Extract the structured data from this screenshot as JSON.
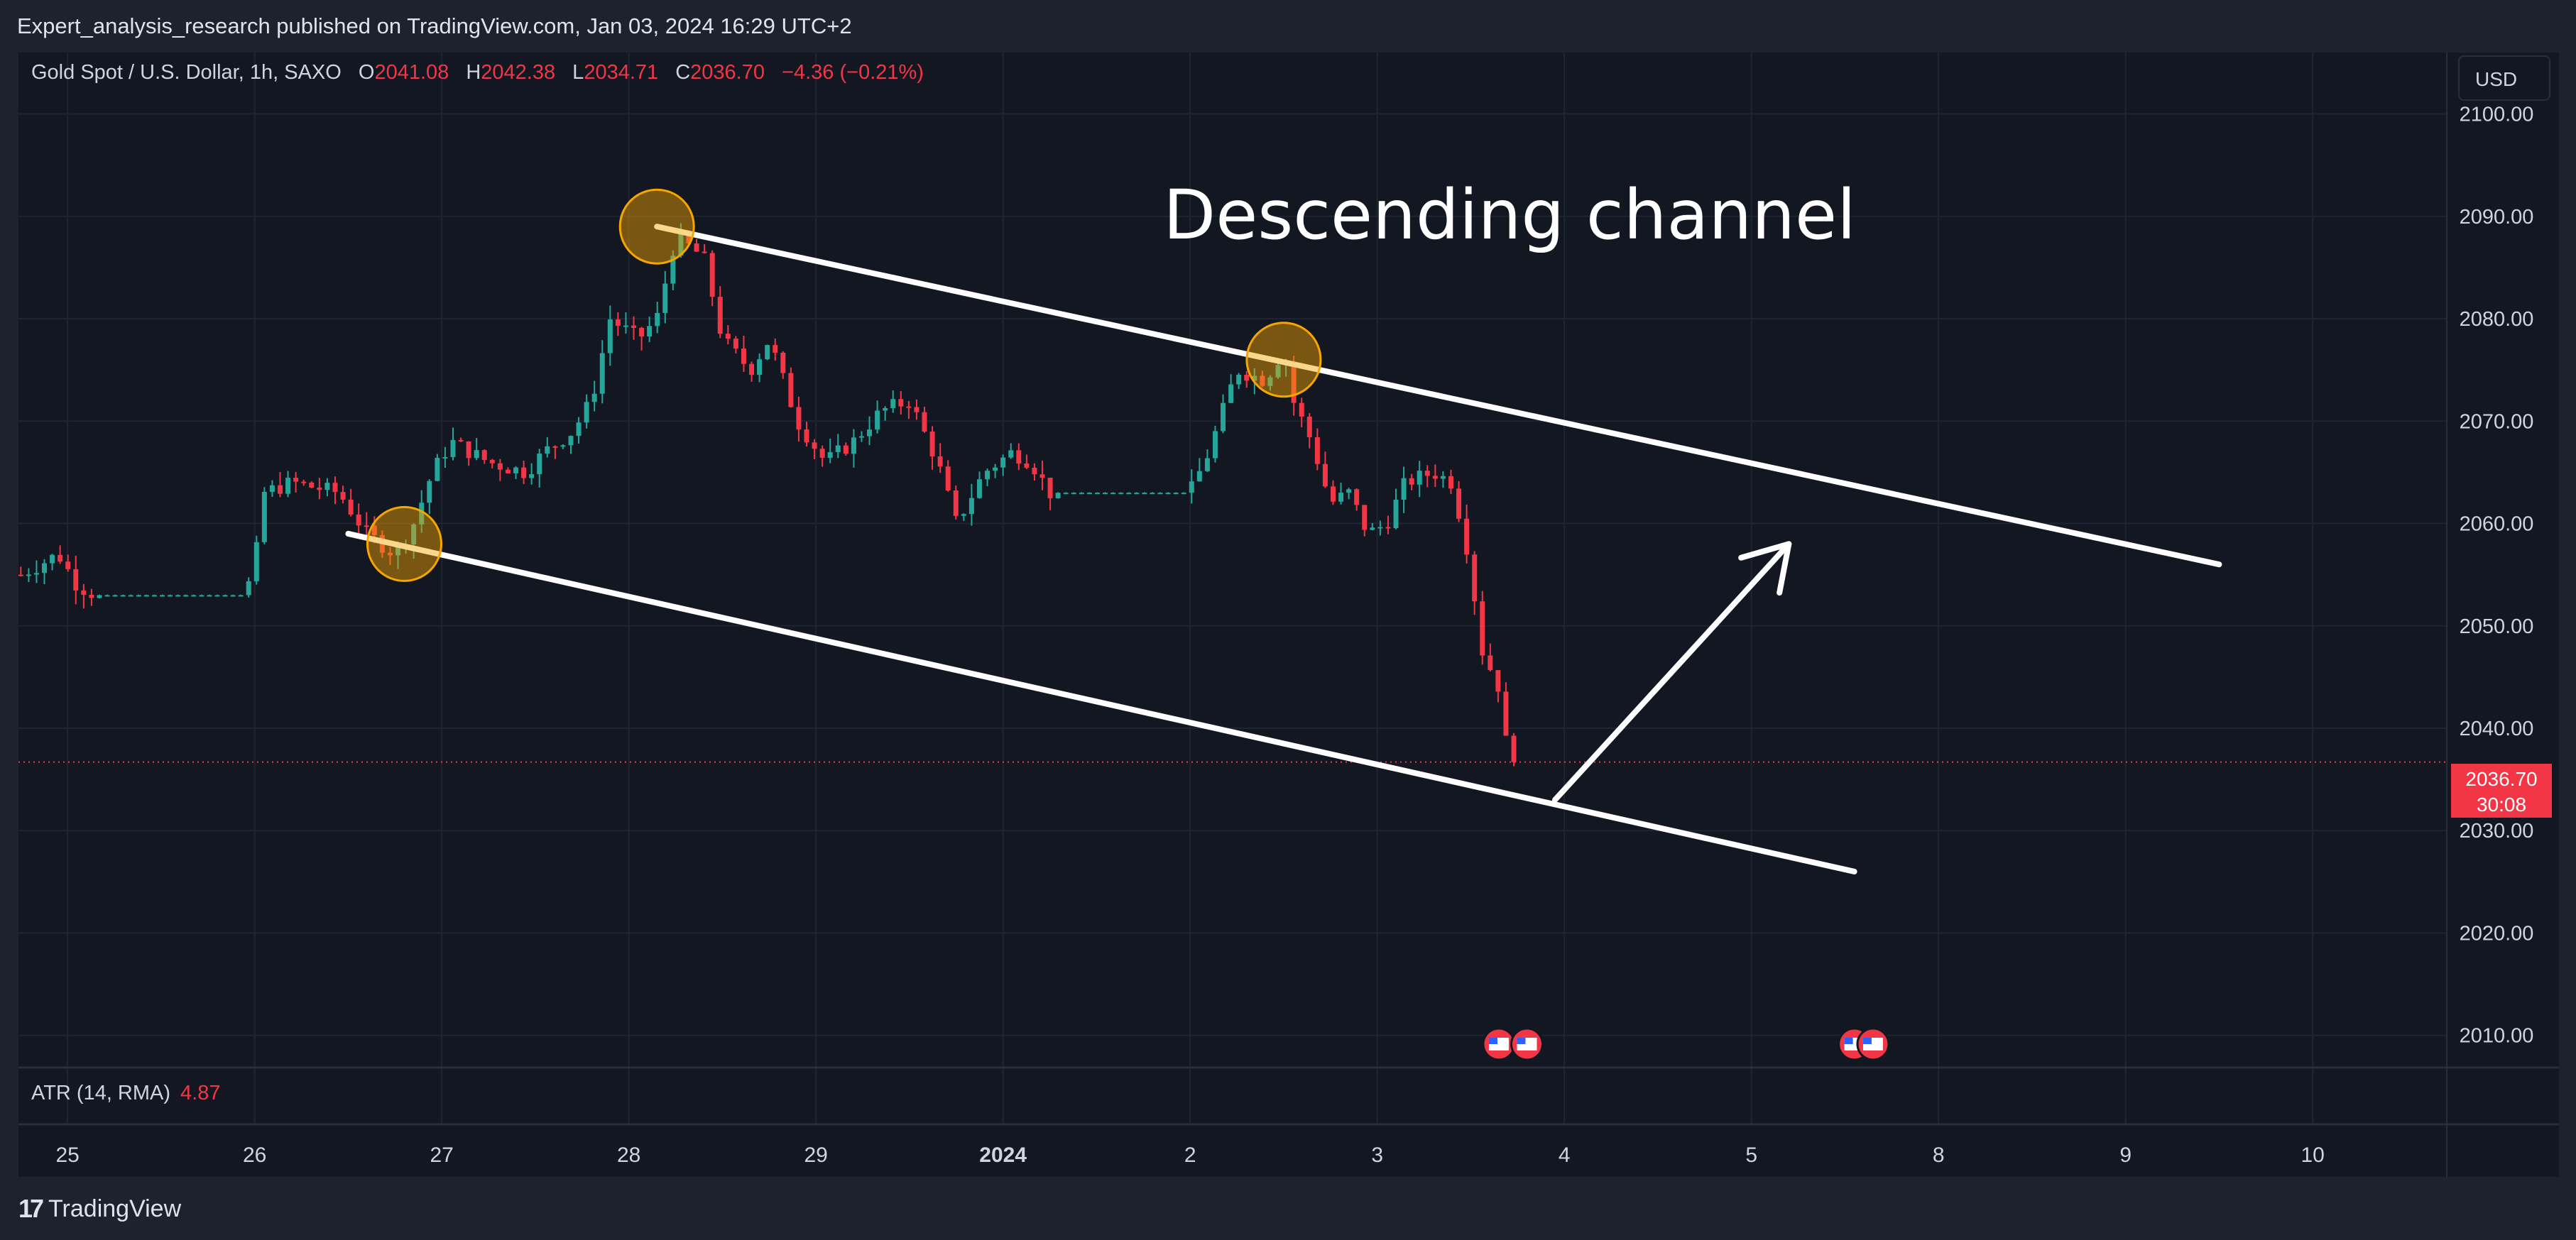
{
  "header": {
    "publisher": "Expert_analysis_research published on TradingView.com, Jan 03, 2024 16:29 UTC+2"
  },
  "legend": {
    "symbol": "Gold Spot / U.S. Dollar, 1h, SAXO",
    "open_label": "O",
    "open": "2041.08",
    "high_label": "H",
    "high": "2042.38",
    "low_label": "L",
    "low": "2034.71",
    "close_label": "C",
    "close": "2036.70",
    "change": "−4.36 (−0.21%)"
  },
  "currency_button": "USD",
  "price_badge": {
    "price": "2036.70",
    "countdown": "30:08"
  },
  "indicator": {
    "name": "ATR (14, RMA)",
    "value": "4.87"
  },
  "footer": {
    "brand": "TradingView"
  },
  "colors": {
    "bull": "#26a69a",
    "bear": "#f23645",
    "bg": "#131722",
    "grid": "#1f2431",
    "annotation": "#ffffff",
    "highlight": "#f7a600"
  },
  "chart_data": {
    "type": "candlestick",
    "title": "Gold Spot / U.S. Dollar, 1h, SAXO",
    "ylim": [
      2007,
      2106
    ],
    "yticks": [
      "2010.00",
      "2020.00",
      "2030.00",
      "2040.00",
      "2050.00",
      "2060.00",
      "2070.00",
      "2080.00",
      "2090.00",
      "2100.00"
    ],
    "xticks": [
      {
        "label": "25",
        "pos": 0.05
      },
      {
        "label": "26",
        "pos": 1.05
      },
      {
        "label": "27",
        "pos": 2.05
      },
      {
        "label": "28",
        "pos": 3.05
      },
      {
        "label": "29",
        "pos": 4.05
      },
      {
        "label": "2024",
        "pos": 5.05
      },
      {
        "label": "2",
        "pos": 6.05
      },
      {
        "label": "3",
        "pos": 7.05
      },
      {
        "label": "4",
        "pos": 8.05
      },
      {
        "label": "5",
        "pos": 9.05
      },
      {
        "label": "8",
        "pos": 10.05
      },
      {
        "label": "9",
        "pos": 11.05
      },
      {
        "label": "10",
        "pos": 12.05
      }
    ],
    "session_x_range": [
      -0.2,
      13.1
    ],
    "price_path": [
      [
        -0.2,
        2055
      ],
      [
        0.0,
        2057
      ],
      [
        0.1,
        2054
      ],
      [
        0.2,
        2053
      ],
      [
        1.0,
        2053
      ],
      [
        1.05,
        2056
      ],
      [
        1.1,
        2063
      ],
      [
        1.25,
        2064
      ],
      [
        1.5,
        2063
      ],
      [
        1.65,
        2059
      ],
      [
        1.8,
        2057
      ],
      [
        1.9,
        2060
      ],
      [
        2.0,
        2065
      ],
      [
        2.1,
        2068
      ],
      [
        2.3,
        2066
      ],
      [
        2.5,
        2065
      ],
      [
        2.6,
        2067
      ],
      [
        2.75,
        2069
      ],
      [
        2.85,
        2072
      ],
      [
        2.95,
        2080
      ],
      [
        3.1,
        2078
      ],
      [
        3.2,
        2080
      ],
      [
        3.3,
        2088
      ],
      [
        3.45,
        2086
      ],
      [
        3.55,
        2078
      ],
      [
        3.7,
        2075
      ],
      [
        3.8,
        2078
      ],
      [
        3.95,
        2070
      ],
      [
        4.1,
        2066
      ],
      [
        4.25,
        2068
      ],
      [
        4.4,
        2071
      ],
      [
        4.55,
        2072
      ],
      [
        4.7,
        2066
      ],
      [
        4.8,
        2060
      ],
      [
        4.95,
        2065
      ],
      [
        5.1,
        2067
      ],
      [
        5.2,
        2066
      ],
      [
        5.3,
        2063
      ],
      [
        6.05,
        2063
      ],
      [
        6.15,
        2067
      ],
      [
        6.3,
        2075
      ],
      [
        6.45,
        2074
      ],
      [
        6.55,
        2077
      ],
      [
        6.6,
        2072
      ],
      [
        6.7,
        2068
      ],
      [
        6.8,
        2062
      ],
      [
        6.9,
        2063
      ],
      [
        7.0,
        2059
      ],
      [
        7.1,
        2060
      ],
      [
        7.2,
        2064
      ],
      [
        7.35,
        2065
      ],
      [
        7.45,
        2064
      ],
      [
        7.55,
        2056
      ],
      [
        7.6,
        2048
      ],
      [
        7.7,
        2044
      ],
      [
        7.75,
        2037
      ],
      [
        7.8,
        2036.7
      ]
    ],
    "current_price": 2036.7,
    "annotations": [
      {
        "type": "line",
        "label": "upper-channel",
        "from": [
          3.2,
          2089
        ],
        "to": [
          11.55,
          2056
        ]
      },
      {
        "type": "line",
        "label": "lower-channel",
        "from": [
          1.55,
          2059
        ],
        "to": [
          9.6,
          2026
        ]
      },
      {
        "type": "arrow",
        "label": "projection",
        "from": [
          8.0,
          2033
        ],
        "to": [
          9.25,
          2058
        ]
      },
      {
        "type": "circle",
        "label": "high-touch",
        "at": [
          3.2,
          2089
        ]
      },
      {
        "type": "circle",
        "label": "channel-touch",
        "at": [
          6.55,
          2076
        ]
      },
      {
        "type": "circle",
        "label": "low-touch",
        "at": [
          1.85,
          2058
        ]
      }
    ],
    "chart_text": "Descending channel",
    "event_flags": [
      7.7,
      7.85,
      9.6,
      9.7
    ]
  }
}
